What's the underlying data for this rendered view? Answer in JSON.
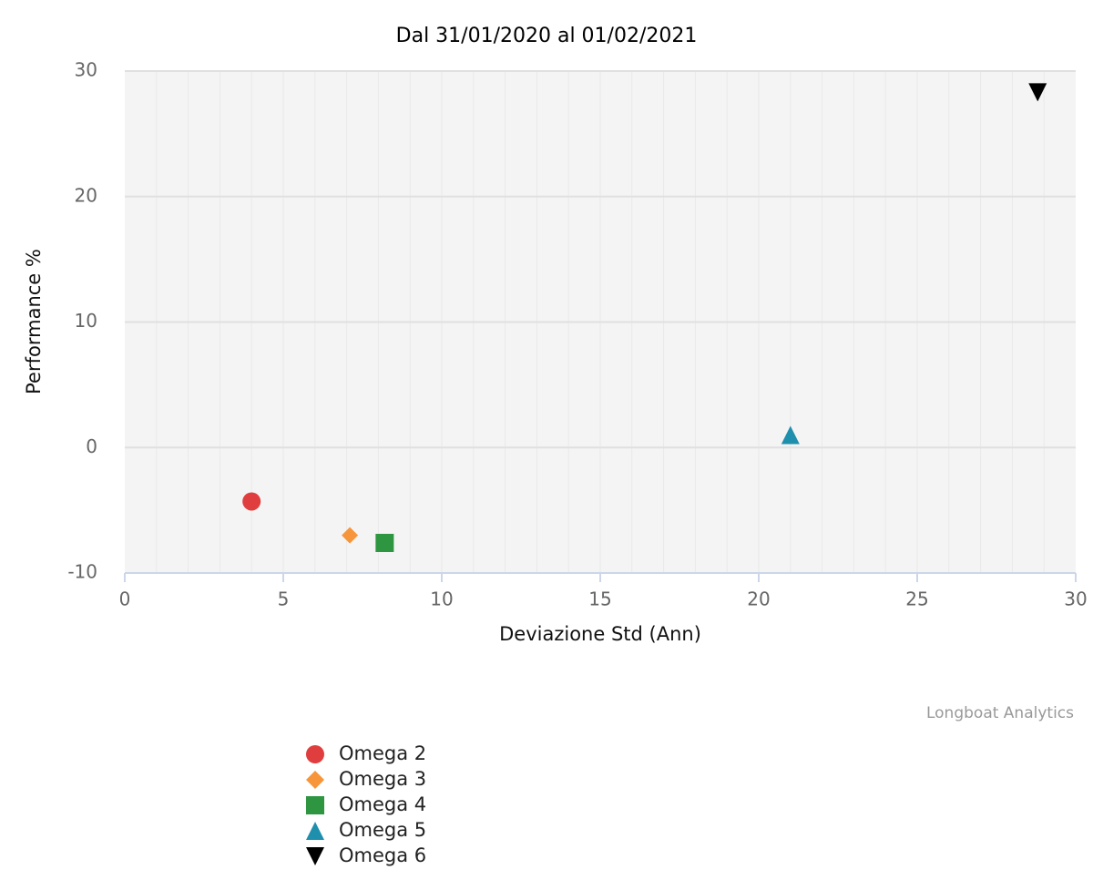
{
  "chart_data": {
    "type": "scatter",
    "title": "Dal 31/01/2020 al 01/02/2021",
    "x_label": "Deviazione Std (Ann)",
    "y_label": "Performance %",
    "credits": "Longboat Analytics",
    "xlim": [
      0,
      30
    ],
    "xticks": [
      0,
      5,
      10,
      15,
      20,
      25,
      30
    ],
    "ylim": [
      -10,
      30
    ],
    "yticks": [
      -10,
      0,
      10,
      20,
      30
    ],
    "grid": true,
    "x_minor_grid": true,
    "legend": "bottom-left",
    "series": [
      {
        "name": "Omega 2",
        "color": "#e03e3e",
        "marker": "circle",
        "x": [
          4.0
        ],
        "values": [
          -4.3
        ]
      },
      {
        "name": "Omega 3",
        "color": "#f7953a",
        "marker": "diamond",
        "x": [
          7.1
        ],
        "values": [
          -7.0
        ]
      },
      {
        "name": "Omega 4",
        "color": "#2e9640",
        "marker": "square",
        "x": [
          8.2
        ],
        "values": [
          -7.6
        ]
      },
      {
        "name": "Omega 5",
        "color": "#1f8fae",
        "marker": "triangle",
        "x": [
          21.0
        ],
        "values": [
          1.0
        ]
      },
      {
        "name": "Omega 6",
        "color": "#000000",
        "marker": "triangle-down",
        "x": [
          28.8
        ],
        "values": [
          28.3
        ]
      }
    ]
  }
}
